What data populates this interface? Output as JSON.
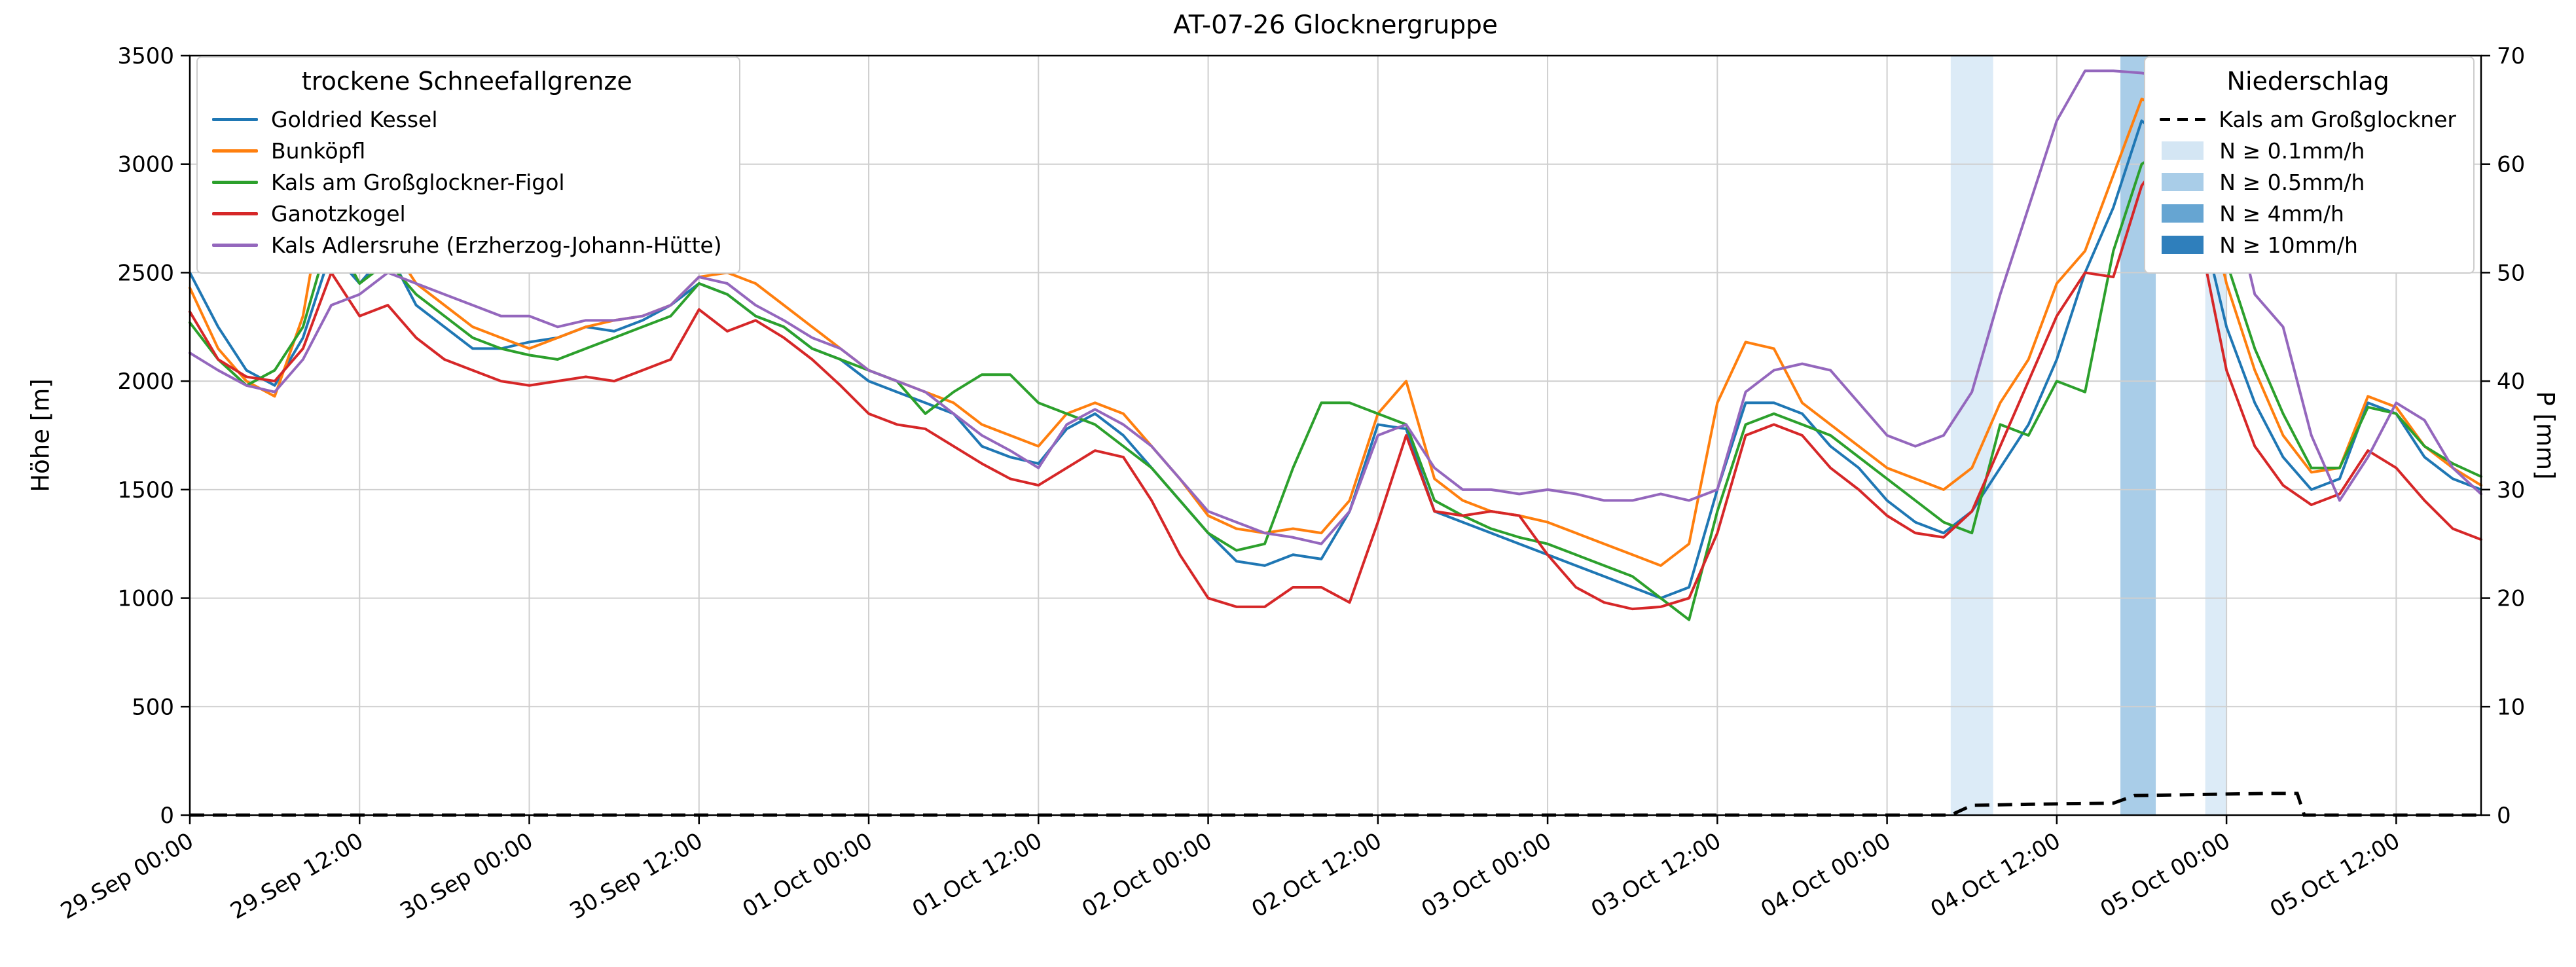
{
  "chart_data": {
    "type": "line",
    "title": "AT-07-26 Glocknergruppe",
    "x_axis": {
      "unit": "hours since 29.Sep 00:00",
      "step_hours": 2,
      "total_hours": 162,
      "tick_interval_hours": 12,
      "tick_labels": [
        "29.Sep 00:00",
        "29.Sep 12:00",
        "30.Sep 00:00",
        "30.Sep 12:00",
        "01.Oct 00:00",
        "01.Oct 12:00",
        "02.Oct 00:00",
        "02.Oct 12:00",
        "03.Oct 00:00",
        "03.Oct 12:00",
        "04.Oct 00:00",
        "04.Oct 12:00",
        "05.Oct 00:00",
        "05.Oct 12:00"
      ]
    },
    "y_left": {
      "label": "Höhe [m]",
      "lim": [
        0,
        3500
      ],
      "ticks": [
        0,
        500,
        1000,
        1500,
        2000,
        2500,
        3000,
        3500
      ]
    },
    "y_right": {
      "label": "P [mm]",
      "lim": [
        0,
        70
      ],
      "ticks": [
        0,
        10,
        20,
        30,
        40,
        50,
        60,
        70
      ]
    },
    "grid": true,
    "legend_snowline_title": "trockene Schneefallgrenze",
    "legend_precip_title": "Niederschlag",
    "series": [
      {
        "name": "Goldried Kessel",
        "color": "#1f77b4",
        "values": [
          2500,
          2250,
          2050,
          1980,
          2200,
          2600,
          2450,
          2600,
          2350,
          2250,
          2150,
          2150,
          2180,
          2200,
          2250,
          2230,
          2280,
          2350,
          2450,
          2400,
          2300,
          2250,
          2150,
          2100,
          2000,
          1950,
          1900,
          1850,
          1700,
          1650,
          1620,
          1780,
          1850,
          1750,
          1600,
          1450,
          1300,
          1170,
          1150,
          1200,
          1180,
          1400,
          1800,
          1780,
          1400,
          1350,
          1300,
          1250,
          1200,
          1150,
          1100,
          1050,
          1000,
          1050,
          1500,
          1900,
          1900,
          1850,
          1700,
          1600,
          1450,
          1350,
          1300,
          1400,
          1600,
          1800,
          2100,
          2500,
          2800,
          3200,
          3100,
          2800,
          2250,
          1900,
          1650,
          1500,
          1550,
          1900,
          1850,
          1650,
          1550,
          1500
        ]
      },
      {
        "name": "Bunköpfl",
        "color": "#ff7f0e",
        "values": [
          2430,
          2150,
          2000,
          1930,
          2300,
          3050,
          2550,
          2650,
          2450,
          2350,
          2250,
          2200,
          2150,
          2200,
          2250,
          2280,
          2300,
          2350,
          2480,
          2500,
          2450,
          2350,
          2250,
          2150,
          2050,
          2000,
          1950,
          1900,
          1800,
          1750,
          1700,
          1850,
          1900,
          1850,
          1700,
          1550,
          1380,
          1320,
          1300,
          1320,
          1300,
          1450,
          1850,
          2000,
          1550,
          1450,
          1400,
          1380,
          1350,
          1300,
          1250,
          1200,
          1150,
          1250,
          1900,
          2180,
          2150,
          1900,
          1800,
          1700,
          1600,
          1550,
          1500,
          1600,
          1900,
          2100,
          2450,
          2600,
          2950,
          3300,
          3250,
          3000,
          2450,
          2050,
          1750,
          1580,
          1600,
          1930,
          1880,
          1700,
          1600,
          1520
        ]
      },
      {
        "name": "Kals am Großglockner-Figol",
        "color": "#2ca02c",
        "values": [
          2270,
          2100,
          1980,
          2050,
          2250,
          2700,
          2450,
          2550,
          2400,
          2300,
          2200,
          2150,
          2120,
          2100,
          2150,
          2200,
          2250,
          2300,
          2450,
          2400,
          2300,
          2250,
          2150,
          2100,
          2050,
          2000,
          1850,
          1950,
          2030,
          2030,
          1900,
          1850,
          1800,
          1700,
          1600,
          1450,
          1300,
          1220,
          1250,
          1600,
          1900,
          1900,
          1850,
          1800,
          1450,
          1380,
          1320,
          1280,
          1250,
          1200,
          1150,
          1100,
          1000,
          900,
          1400,
          1800,
          1850,
          1800,
          1750,
          1650,
          1550,
          1450,
          1350,
          1300,
          1800,
          1750,
          2000,
          1950,
          2600,
          3000,
          3080,
          2950,
          2550,
          2150,
          1850,
          1600,
          1600,
          1880,
          1850,
          1700,
          1620,
          1560
        ]
      },
      {
        "name": "Ganotzkogel",
        "color": "#d62728",
        "values": [
          2320,
          2100,
          2020,
          2000,
          2150,
          2500,
          2300,
          2350,
          2200,
          2100,
          2050,
          2000,
          1980,
          2000,
          2020,
          2000,
          2050,
          2100,
          2330,
          2230,
          2280,
          2200,
          2100,
          1980,
          1850,
          1800,
          1780,
          1700,
          1620,
          1550,
          1520,
          1600,
          1680,
          1650,
          1450,
          1200,
          1000,
          960,
          960,
          1050,
          1050,
          980,
          1350,
          1750,
          1400,
          1380,
          1400,
          1380,
          1200,
          1050,
          980,
          950,
          960,
          1000,
          1300,
          1750,
          1800,
          1750,
          1600,
          1500,
          1380,
          1300,
          1280,
          1400,
          1700,
          2000,
          2300,
          2500,
          2480,
          2900,
          3080,
          2700,
          2050,
          1700,
          1520,
          1430,
          1480,
          1680,
          1600,
          1450,
          1320,
          1270
        ]
      },
      {
        "name": "Kals Adlersruhe (Erzherzog-Johann-Hütte)",
        "color": "#9467bd",
        "values": [
          2130,
          2050,
          1980,
          1950,
          2100,
          2350,
          2400,
          2500,
          2450,
          2400,
          2350,
          2300,
          2300,
          2250,
          2280,
          2280,
          2300,
          2350,
          2480,
          2450,
          2350,
          2280,
          2200,
          2150,
          2050,
          2000,
          1950,
          1850,
          1750,
          1680,
          1600,
          1800,
          1870,
          1800,
          1700,
          1550,
          1400,
          1350,
          1300,
          1280,
          1250,
          1400,
          1750,
          1800,
          1600,
          1500,
          1500,
          1480,
          1500,
          1480,
          1450,
          1450,
          1480,
          1450,
          1500,
          1950,
          2050,
          2080,
          2050,
          1900,
          1750,
          1700,
          1750,
          1950,
          2400,
          2800,
          3200,
          3430,
          3430,
          3420,
          3400,
          3250,
          2950,
          2400,
          2250,
          1750,
          1450,
          1650,
          1900,
          1820,
          1600,
          1480
        ]
      }
    ],
    "precip_line": {
      "name": "Kals am Großglockner",
      "color": "#000000",
      "style": "dashed",
      "axis": "right",
      "points": [
        [
          0,
          0
        ],
        [
          124.5,
          0
        ],
        [
          126,
          0.9
        ],
        [
          130,
          1.0
        ],
        [
          136,
          1.1
        ],
        [
          137.5,
          1.8
        ],
        [
          142,
          1.9
        ],
        [
          147,
          2.0
        ],
        [
          149,
          2.0
        ],
        [
          149.5,
          0
        ],
        [
          162,
          0
        ]
      ]
    },
    "precip_bands": [
      {
        "start_hour": 124.5,
        "end_hour": 127.5,
        "intensity": "N ≥ 0.1mm/h",
        "color": "#dcebf7"
      },
      {
        "start_hour": 136.5,
        "end_hour": 139.0,
        "intensity": "N ≥ 0.5mm/h",
        "color": "#a9cde8"
      },
      {
        "start_hour": 142.5,
        "end_hour": 144.0,
        "intensity": "N ≥ 0.1mm/h",
        "color": "#dcebf7"
      }
    ],
    "precip_band_legend": [
      {
        "label": "N ≥ 0.1mm/h",
        "color": "#d4e6f4"
      },
      {
        "label": "N ≥ 0.5mm/h",
        "color": "#a9cde8"
      },
      {
        "label": "N ≥ 4mm/h",
        "color": "#66a5d2"
      },
      {
        "label": "N ≥ 10mm/h",
        "color": "#2f7fbc"
      }
    ]
  }
}
